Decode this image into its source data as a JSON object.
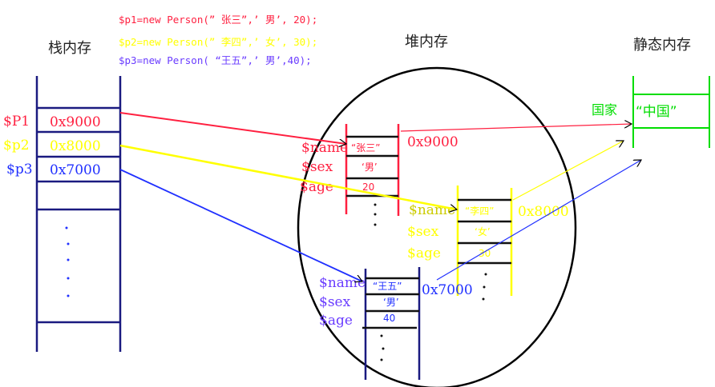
{
  "code": [
    {
      "text": "$p1=new Person(” 张三”,’ 男’, 20);",
      "color": "#ff2040"
    },
    {
      "text": "$p2=new Person(” 李四”,’ 女’, 30);",
      "color": "#ffff00"
    },
    {
      "text": "$p3=new Person( “王五”,’ 男’,40);",
      "color": "#6a3cff"
    }
  ],
  "stack": {
    "title": "栈内存",
    "vars": [
      {
        "name": "$P1",
        "value": "0x9000",
        "color": "#ff2040"
      },
      {
        "name": "$p2",
        "value": "0x8000",
        "color": "#ffff00"
      },
      {
        "name": "$p3",
        "value": "0x7000",
        "color": "#2030ff"
      }
    ]
  },
  "heap": {
    "title": "堆内存",
    "objects": [
      {
        "address": "0x9000",
        "color": "#ff2040",
        "fields": [
          "$name",
          "$sex",
          "$age"
        ],
        "values": [
          "“张三”",
          "‘男’",
          "20"
        ]
      },
      {
        "address": "0x8000",
        "color": "#ffff00",
        "fields": [
          "$name",
          "$sex",
          "$age"
        ],
        "values": [
          "“李四”",
          "‘女’",
          "30"
        ]
      },
      {
        "address": "0x7000",
        "color": "#2030ff",
        "fields": [
          "$name",
          "$sex",
          "$age"
        ],
        "values": [
          "“王五”",
          "‘男’",
          "40"
        ]
      }
    ]
  },
  "static": {
    "title": "静态内存",
    "field": "国家",
    "value": "“中国”",
    "color": "#00dd00"
  }
}
